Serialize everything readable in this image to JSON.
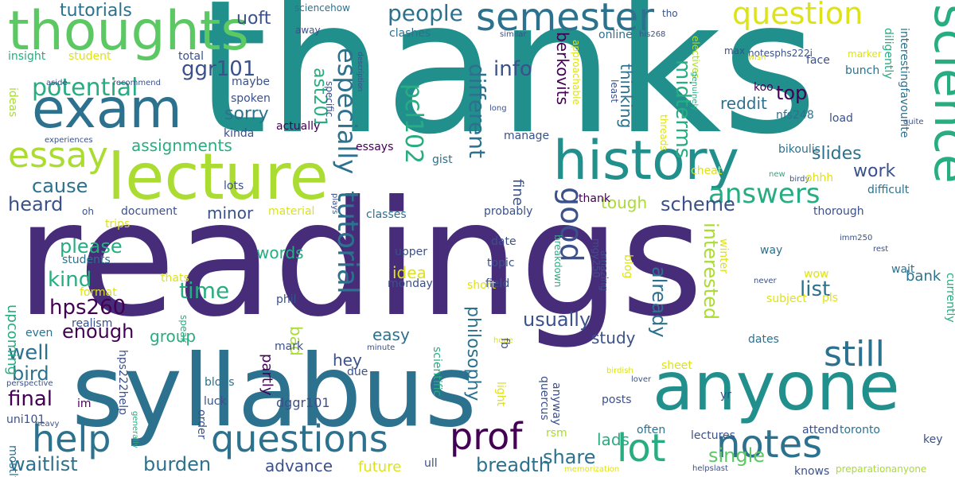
{
  "word_cloud": {
    "palette": {
      "dark_purple": "#440154",
      "indigo": "#472c7a",
      "slate_blue": "#3b518b",
      "steel_blue": "#2c718e",
      "teal": "#21908d",
      "sea_green": "#27ad81",
      "green": "#5cc863",
      "lime": "#aadc32",
      "yellow": "#dde318"
    },
    "words": [
      {
        "text": "thanks"
      },
      {
        "text": "readings"
      },
      {
        "text": "syllabus"
      },
      {
        "text": "anyone"
      },
      {
        "text": "lecture"
      },
      {
        "text": "thoughts"
      },
      {
        "text": "exam"
      },
      {
        "text": "history"
      },
      {
        "text": "science"
      },
      {
        "text": "semester"
      },
      {
        "text": "question"
      },
      {
        "text": "notes"
      },
      {
        "text": "questions"
      },
      {
        "text": "help"
      },
      {
        "text": "prof"
      },
      {
        "text": "lot"
      },
      {
        "text": "essay"
      },
      {
        "text": "still"
      },
      {
        "text": "answers"
      },
      {
        "text": "good"
      },
      {
        "text": "tutorial"
      },
      {
        "text": "especially"
      },
      {
        "text": "pcl102"
      },
      {
        "text": "potential"
      },
      {
        "text": "people"
      },
      {
        "text": "tutorials"
      },
      {
        "text": "uoft"
      },
      {
        "text": "ggr101"
      },
      {
        "text": "info"
      },
      {
        "text": "midterms"
      },
      {
        "text": "different"
      },
      {
        "text": "berkovits"
      },
      {
        "text": "top"
      },
      {
        "text": "reddit"
      },
      {
        "text": "ast201"
      },
      {
        "text": "sorry"
      },
      {
        "text": "assignments"
      },
      {
        "text": "cause"
      },
      {
        "text": "heard"
      },
      {
        "text": "scheme"
      },
      {
        "text": "work"
      },
      {
        "text": "slides"
      },
      {
        "text": "kind"
      },
      {
        "text": "time"
      },
      {
        "text": "hps260"
      },
      {
        "text": "enough"
      },
      {
        "text": "well"
      },
      {
        "text": "bird"
      },
      {
        "text": "final"
      },
      {
        "text": "waitlist"
      },
      {
        "text": "burden"
      },
      {
        "text": "advance"
      },
      {
        "text": "breadth"
      },
      {
        "text": "share"
      },
      {
        "text": "single"
      },
      {
        "text": "list"
      },
      {
        "text": "interested"
      },
      {
        "text": "already"
      },
      {
        "text": "usually"
      },
      {
        "text": "philosophy"
      },
      {
        "text": "tough"
      },
      {
        "text": "thinking"
      },
      {
        "text": "minor"
      },
      {
        "text": "please"
      },
      {
        "text": "group"
      },
      {
        "text": "easy"
      },
      {
        "text": "bad"
      },
      {
        "text": "hey"
      },
      {
        "text": "lads"
      },
      {
        "text": "study"
      },
      {
        "text": "bank"
      },
      {
        "text": "words"
      },
      {
        "text": "idea"
      },
      {
        "text": "fine"
      },
      {
        "text": "partly"
      },
      {
        "text": "dggr101"
      },
      {
        "text": "upcoming"
      },
      {
        "text": "future"
      },
      {
        "text": "lectures"
      },
      {
        "text": "toronto"
      },
      {
        "text": "attend"
      },
      {
        "text": "knows"
      },
      {
        "text": "key"
      },
      {
        "text": "preparationanyone"
      },
      {
        "text": "bikoulis"
      },
      {
        "text": "load"
      },
      {
        "text": "nfs248"
      },
      {
        "text": "koo"
      },
      {
        "text": "bunch"
      },
      {
        "text": "face"
      },
      {
        "text": "max"
      },
      {
        "text": "notesphs222i"
      },
      {
        "text": "marker"
      },
      {
        "text": "diligently"
      },
      {
        "text": "interestingfavourite"
      },
      {
        "text": "tho"
      },
      {
        "text": "online"
      },
      {
        "text": "similar"
      },
      {
        "text": "his268"
      },
      {
        "text": "electives"
      },
      {
        "text": "wish"
      },
      {
        "text": "insight"
      },
      {
        "text": "student"
      },
      {
        "text": "total"
      },
      {
        "text": "aside"
      },
      {
        "text": "recommend"
      },
      {
        "text": "away"
      },
      {
        "text": "sciencehow"
      },
      {
        "text": "clashes"
      },
      {
        "text": "maybe"
      },
      {
        "text": "spoken"
      },
      {
        "text": "specific"
      },
      {
        "text": "description"
      },
      {
        "text": "ideas"
      },
      {
        "text": "experiences"
      },
      {
        "text": "kinda"
      },
      {
        "text": "actually"
      },
      {
        "text": "essays"
      },
      {
        "text": "gist"
      },
      {
        "text": "manage"
      },
      {
        "text": "lots"
      },
      {
        "text": "oh"
      },
      {
        "text": "document"
      },
      {
        "text": "trips"
      },
      {
        "text": "material"
      },
      {
        "text": "plays"
      },
      {
        "text": "classes"
      },
      {
        "text": "students"
      },
      {
        "text": "format"
      },
      {
        "text": "thats"
      },
      {
        "text": "realism"
      },
      {
        "text": "even"
      },
      {
        "text": "speak"
      },
      {
        "text": "mark"
      },
      {
        "text": "minute"
      },
      {
        "text": "due"
      },
      {
        "text": "perspective"
      },
      {
        "text": "im"
      },
      {
        "text": "blogs"
      },
      {
        "text": "luck"
      },
      {
        "text": "uni101"
      },
      {
        "text": "heavy"
      },
      {
        "text": "mostly"
      },
      {
        "text": "generally"
      },
      {
        "text": "hps222help"
      },
      {
        "text": "order"
      },
      {
        "text": "ull"
      },
      {
        "text": "scientific"
      },
      {
        "text": "light"
      },
      {
        "text": "quercus"
      },
      {
        "text": "anyway"
      },
      {
        "text": "rsm"
      },
      {
        "text": "memorization"
      },
      {
        "text": "helpslast"
      },
      {
        "text": "often"
      },
      {
        "text": "posts"
      },
      {
        "text": "sheet"
      },
      {
        "text": "lover"
      },
      {
        "text": "yr"
      },
      {
        "text": "dates"
      },
      {
        "text": "birdish"
      },
      {
        "text": "hope"
      },
      {
        "text": "blog"
      },
      {
        "text": "winter"
      },
      {
        "text": "pls"
      },
      {
        "text": "wow"
      },
      {
        "text": "way"
      },
      {
        "text": "never"
      },
      {
        "text": "rest"
      },
      {
        "text": "imm250"
      },
      {
        "text": "wait"
      },
      {
        "text": "currently"
      },
      {
        "text": "subject"
      },
      {
        "text": "thank"
      },
      {
        "text": "birdy"
      },
      {
        "text": "new"
      },
      {
        "text": "ohhh"
      },
      {
        "text": "cheat"
      },
      {
        "text": "difficult"
      },
      {
        "text": "thorough"
      },
      {
        "text": "probably"
      },
      {
        "text": "date"
      },
      {
        "text": "topic"
      },
      {
        "text": "field"
      },
      {
        "text": "short"
      },
      {
        "text": "breakdown"
      },
      {
        "text": "amazing"
      },
      {
        "text": "mgy250"
      },
      {
        "text": "upper"
      },
      {
        "text": "monday"
      },
      {
        "text": "phil"
      },
      {
        "text": "fb"
      },
      {
        "text": "approachable"
      },
      {
        "text": "least"
      },
      {
        "text": "threads"
      },
      {
        "text": "long"
      },
      {
        "text": "genuinely"
      },
      {
        "text": "quite"
      }
    ]
  }
}
